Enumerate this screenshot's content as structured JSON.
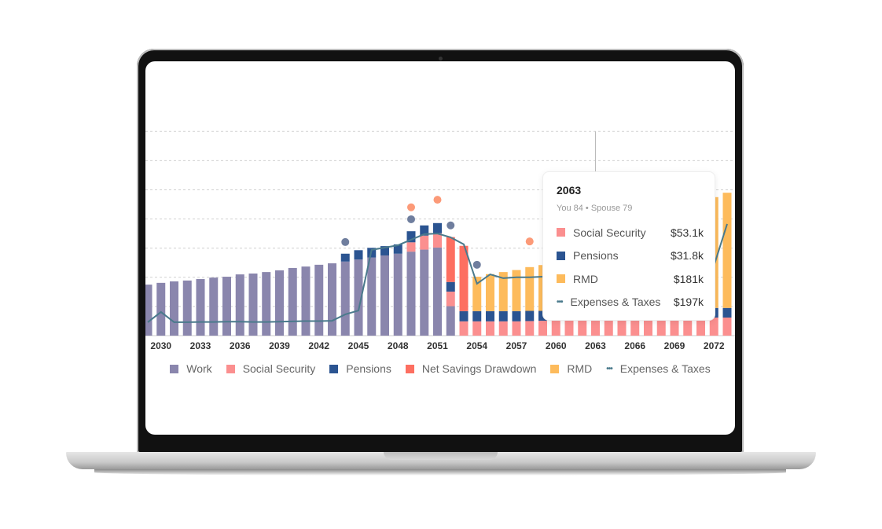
{
  "colors": {
    "work": "#8a86ad",
    "social_security": "#fb8f8f",
    "pensions": "#2b5491",
    "drawdown": "#fd6f61",
    "rmd": "#fdbb5c",
    "expenses": "#4a7a8c",
    "marker_orange": "#fc9a78",
    "marker_blue": "#6f7e9e",
    "grid": "#d0d0d0"
  },
  "chart_data": {
    "type": "bar",
    "stacked": true,
    "x": [
      2029,
      2030,
      2031,
      2032,
      2033,
      2034,
      2035,
      2036,
      2037,
      2038,
      2039,
      2040,
      2041,
      2042,
      2043,
      2044,
      2045,
      2046,
      2047,
      2048,
      2049,
      2050,
      2051,
      2052,
      2053,
      2054,
      2055,
      2056,
      2057,
      2058,
      2059,
      2060,
      2061,
      2062,
      2063,
      2064,
      2065,
      2066,
      2067,
      2068,
      2069,
      2070,
      2071,
      2072,
      2073
    ],
    "x_tick_labels": [
      "2030",
      "2033",
      "2036",
      "2039",
      "2042",
      "2045",
      "2048",
      "2051",
      "2054",
      "2057",
      "2060",
      "2063",
      "2066",
      "2069",
      "2072"
    ],
    "y_unit": "$k",
    "ylim": [
      0,
      700
    ],
    "grid": true,
    "legend_placement": "bottom",
    "series": [
      {
        "key": "work",
        "name": "Work",
        "values": [
          175,
          181,
          186,
          189,
          194,
          199,
          202,
          210,
          213,
          218,
          224,
          232,
          237,
          243,
          248,
          254,
          261,
          268,
          275,
          281,
          288,
          295,
          302,
          101,
          0,
          0,
          0,
          0,
          0,
          0,
          0,
          0,
          0,
          0,
          0,
          0,
          0,
          0,
          0,
          0,
          0,
          0,
          0,
          0,
          0
        ]
      },
      {
        "key": "social_security",
        "name": "Social Security",
        "values": [
          0,
          0,
          0,
          0,
          0,
          0,
          0,
          0,
          0,
          0,
          0,
          0,
          0,
          0,
          0,
          0,
          0,
          0,
          0,
          0,
          32,
          48,
          49,
          50,
          49,
          49,
          49,
          49,
          49,
          50,
          51,
          52,
          53,
          53,
          53.1,
          53,
          53,
          53,
          53,
          53,
          53,
          53,
          53,
          62,
          62
        ]
      },
      {
        "key": "pensions",
        "name": "Pensions",
        "values": [
          0,
          0,
          0,
          0,
          0,
          0,
          0,
          0,
          0,
          0,
          0,
          0,
          0,
          0,
          0,
          27,
          32,
          33,
          32,
          32,
          38,
          35,
          35,
          33,
          35,
          35,
          35,
          35,
          35,
          35,
          34,
          32,
          32,
          32,
          31.8,
          32,
          32,
          32,
          32,
          32,
          32,
          32,
          32,
          33,
          33
        ]
      },
      {
        "key": "drawdown",
        "name": "Net Savings Drawdown",
        "values": [
          0,
          0,
          0,
          0,
          0,
          0,
          0,
          0,
          0,
          0,
          0,
          0,
          0,
          0,
          0,
          0,
          0,
          0,
          0,
          0,
          0,
          0,
          0,
          154,
          224,
          0,
          0,
          0,
          0,
          0,
          0,
          0,
          0,
          0,
          0,
          0,
          0,
          0,
          0,
          0,
          0,
          0,
          0,
          0,
          0
        ]
      },
      {
        "key": "rmd",
        "name": "RMD",
        "values": [
          0,
          0,
          0,
          0,
          0,
          0,
          0,
          0,
          0,
          0,
          0,
          0,
          0,
          0,
          0,
          0,
          0,
          0,
          0,
          0,
          0,
          0,
          0,
          0,
          0,
          118,
          127,
          134,
          141,
          150,
          157,
          163,
          170,
          176,
          181,
          187,
          193,
          199,
          205,
          212,
          219,
          226,
          233,
          380,
          395
        ]
      },
      {
        "key": "expenses",
        "name": "Expenses & Taxes",
        "type": "line",
        "values": [
          46,
          81,
          46,
          46,
          47,
          47,
          48,
          48,
          47,
          47,
          48,
          49,
          50,
          50,
          51,
          73,
          86,
          294,
          302,
          310,
          329,
          348,
          350,
          337,
          313,
          178,
          210,
          197,
          200,
          200,
          202,
          200,
          199,
          198,
          197,
          200,
          205,
          210,
          215,
          220,
          225,
          230,
          235,
          240,
          383
        ]
      }
    ],
    "markers": [
      {
        "year": 2044,
        "kind": "blue",
        "value": 321
      },
      {
        "year": 2049,
        "kind": "orange",
        "value": 440
      },
      {
        "year": 2049,
        "kind": "blue",
        "value": 399
      },
      {
        "year": 2051,
        "kind": "orange",
        "value": 466
      },
      {
        "year": 2052,
        "kind": "blue",
        "value": 378
      },
      {
        "year": 2054,
        "kind": "blue",
        "value": 243
      },
      {
        "year": 2058,
        "kind": "orange",
        "value": 323
      }
    ],
    "hover_year": 2063
  },
  "tooltip": {
    "year": "2063",
    "ages": "You 84 • Spouse 79",
    "rows": [
      {
        "label": "Social Security",
        "value": "$53.1k",
        "key": "social_security"
      },
      {
        "label": "Pensions",
        "value": "$31.8k",
        "key": "pensions"
      },
      {
        "label": "RMD",
        "value": "$181k",
        "key": "rmd"
      },
      {
        "label": "Expenses & Taxes",
        "value": "$197k",
        "key": "expenses"
      }
    ]
  },
  "legend": [
    {
      "label": "Work",
      "key": "work"
    },
    {
      "label": "Social Security",
      "key": "social_security"
    },
    {
      "label": "Pensions",
      "key": "pensions"
    },
    {
      "label": "Net Savings Drawdown",
      "key": "drawdown"
    },
    {
      "label": "RMD",
      "key": "rmd"
    },
    {
      "label": "Expenses & Taxes",
      "key": "expenses",
      "line": true
    }
  ]
}
